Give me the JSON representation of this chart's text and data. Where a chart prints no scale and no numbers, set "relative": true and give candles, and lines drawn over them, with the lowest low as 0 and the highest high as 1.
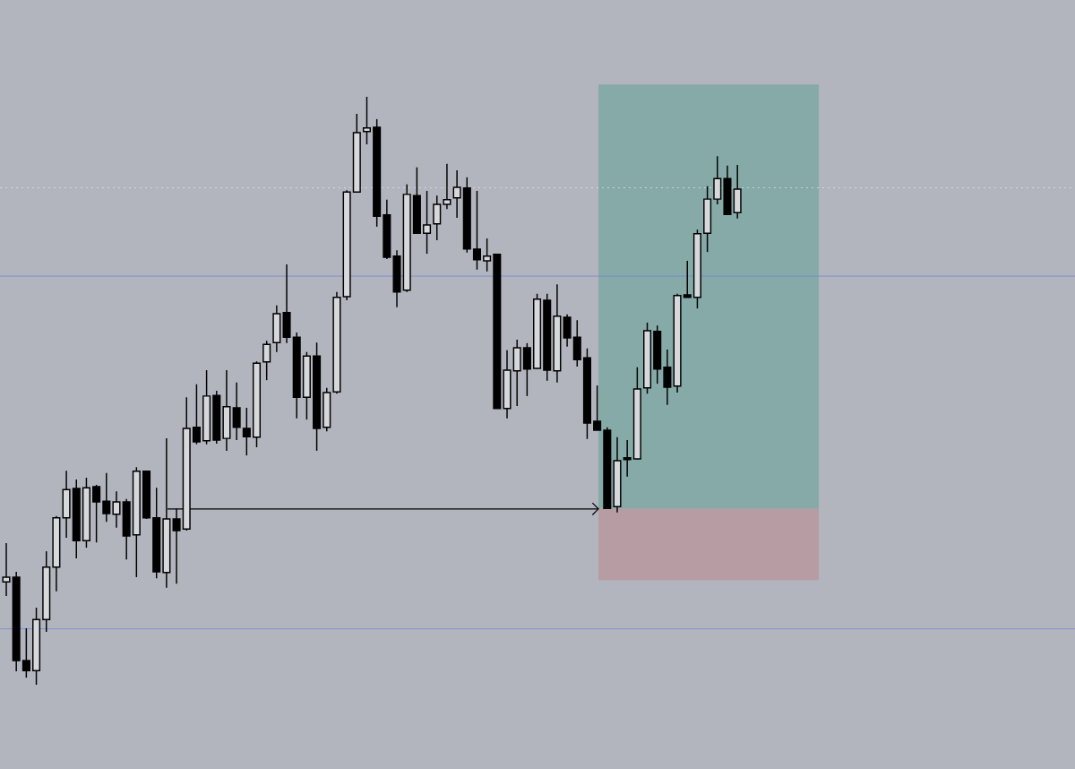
{
  "chart_data": {
    "type": "candlestick",
    "relative": true,
    "categories": [
      null,
      null,
      null,
      null,
      null,
      null,
      null,
      null,
      null,
      null,
      null,
      null,
      null,
      null,
      null,
      null,
      null,
      null,
      null,
      null,
      null,
      null,
      null,
      null,
      null,
      null,
      null,
      null,
      null,
      null,
      null,
      null,
      null,
      null,
      null,
      null,
      null,
      null,
      null,
      null,
      null,
      null,
      null,
      null,
      null,
      null,
      null,
      null,
      null,
      null,
      null,
      null,
      null,
      null,
      null,
      null,
      null,
      null,
      null,
      null,
      null,
      null,
      null,
      null,
      null,
      null,
      null,
      null,
      null,
      null,
      null,
      null,
      null,
      null
    ],
    "ohlc": [
      [
        0.175,
        0.241,
        0.151,
        0.183
      ],
      [
        0.183,
        0.192,
        0.023,
        0.041
      ],
      [
        0.041,
        0.096,
        0.012,
        0.024
      ],
      [
        0.024,
        0.131,
        0.0,
        0.111
      ],
      [
        0.111,
        0.227,
        0.09,
        0.2
      ],
      [
        0.2,
        0.287,
        0.159,
        0.284
      ],
      [
        0.284,
        0.364,
        0.25,
        0.332
      ],
      [
        0.334,
        0.349,
        0.215,
        0.245
      ],
      [
        0.245,
        0.352,
        0.233,
        0.335
      ],
      [
        0.337,
        0.34,
        0.242,
        0.311
      ],
      [
        0.312,
        0.36,
        0.277,
        0.291
      ],
      [
        0.29,
        0.329,
        0.267,
        0.311
      ],
      [
        0.311,
        0.316,
        0.213,
        0.253
      ],
      [
        0.255,
        0.37,
        0.183,
        0.363
      ],
      [
        0.363,
        0.364,
        0.282,
        0.284
      ],
      [
        0.284,
        0.335,
        0.181,
        0.192
      ],
      [
        0.191,
        0.419,
        0.165,
        0.282
      ],
      [
        0.282,
        0.299,
        0.172,
        0.262
      ],
      [
        0.265,
        0.489,
        0.262,
        0.436
      ],
      [
        0.438,
        0.511,
        0.409,
        0.413
      ],
      [
        0.415,
        0.535,
        0.409,
        0.491
      ],
      [
        0.492,
        0.5,
        0.41,
        0.416
      ],
      [
        0.419,
        0.535,
        0.398,
        0.473
      ],
      [
        0.471,
        0.514,
        0.416,
        0.438
      ],
      [
        0.436,
        0.471,
        0.39,
        0.422
      ],
      [
        0.421,
        0.55,
        0.404,
        0.547
      ],
      [
        0.549,
        0.585,
        0.518,
        0.579
      ],
      [
        0.582,
        0.645,
        0.566,
        0.631
      ],
      [
        0.633,
        0.715,
        0.581,
        0.591
      ],
      [
        0.591,
        0.599,
        0.453,
        0.489
      ],
      [
        0.489,
        0.566,
        0.451,
        0.559
      ],
      [
        0.559,
        0.582,
        0.398,
        0.436
      ],
      [
        0.438,
        0.505,
        0.431,
        0.497
      ],
      [
        0.498,
        0.668,
        0.495,
        0.659
      ],
      [
        0.66,
        0.841,
        0.654,
        0.838
      ],
      [
        0.838,
        0.971,
        0.838,
        0.939
      ],
      [
        0.941,
        1.0,
        0.919,
        0.947
      ],
      [
        0.948,
        0.962,
        0.779,
        0.797
      ],
      [
        0.799,
        0.825,
        0.724,
        0.727
      ],
      [
        0.729,
        0.739,
        0.642,
        0.668
      ],
      [
        0.671,
        0.851,
        0.668,
        0.834
      ],
      [
        0.832,
        0.88,
        0.767,
        0.768
      ],
      [
        0.768,
        0.84,
        0.733,
        0.782
      ],
      [
        0.784,
        0.832,
        0.756,
        0.817
      ],
      [
        0.817,
        0.886,
        0.809,
        0.825
      ],
      [
        0.828,
        0.875,
        0.794,
        0.846
      ],
      [
        0.845,
        0.863,
        0.735,
        0.741
      ],
      [
        0.741,
        0.84,
        0.706,
        0.723
      ],
      [
        0.721,
        0.759,
        0.703,
        0.729
      ],
      [
        0.732,
        0.732,
        0.47,
        0.47
      ],
      [
        0.47,
        0.569,
        0.453,
        0.535
      ],
      [
        0.534,
        0.587,
        0.474,
        0.573
      ],
      [
        0.573,
        0.581,
        0.491,
        0.537
      ],
      [
        0.538,
        0.665,
        0.537,
        0.656
      ],
      [
        0.654,
        0.665,
        0.517,
        0.535
      ],
      [
        0.534,
        0.681,
        0.514,
        0.627
      ],
      [
        0.625,
        0.63,
        0.575,
        0.59
      ],
      [
        0.591,
        0.62,
        0.541,
        0.553
      ],
      [
        0.556,
        0.572,
        0.418,
        0.445
      ],
      [
        0.448,
        0.509,
        0.433,
        0.433
      ],
      [
        0.433,
        0.438,
        0.299,
        0.3
      ],
      [
        0.303,
        0.421,
        0.293,
        0.381
      ],
      [
        0.386,
        0.416,
        0.354,
        0.383
      ],
      [
        0.384,
        0.54,
        0.383,
        0.503
      ],
      [
        0.505,
        0.616,
        0.495,
        0.602
      ],
      [
        0.601,
        0.611,
        0.512,
        0.537
      ],
      [
        0.54,
        0.57,
        0.476,
        0.506
      ],
      [
        0.508,
        0.665,
        0.497,
        0.662
      ],
      [
        0.663,
        0.721,
        0.659,
        0.659
      ],
      [
        0.659,
        0.774,
        0.64,
        0.767
      ],
      [
        0.768,
        0.848,
        0.736,
        0.826
      ],
      [
        0.826,
        0.899,
        0.817,
        0.861
      ],
      [
        0.861,
        0.883,
        0.799,
        0.8
      ],
      [
        0.803,
        0.884,
        0.793,
        0.843
      ]
    ],
    "bands": [
      {
        "axis": "y",
        "from": 0.299,
        "to": 1.021,
        "color": "#86aaa8"
      },
      {
        "axis": "y",
        "from": 0.178,
        "to": 0.299,
        "color": "#b89ca3"
      }
    ],
    "ref_lines": [
      {
        "axis": "y",
        "value": 0.695,
        "color": "#7185d8"
      },
      {
        "axis": "y",
        "value": 0.095,
        "color": "#7185d8"
      },
      {
        "axis": "y",
        "value": 0.845,
        "color": "#e4e6ea",
        "line_style": "dotted"
      },
      {
        "axis": "y",
        "value": 0.299,
        "color": "#000000"
      }
    ]
  }
}
